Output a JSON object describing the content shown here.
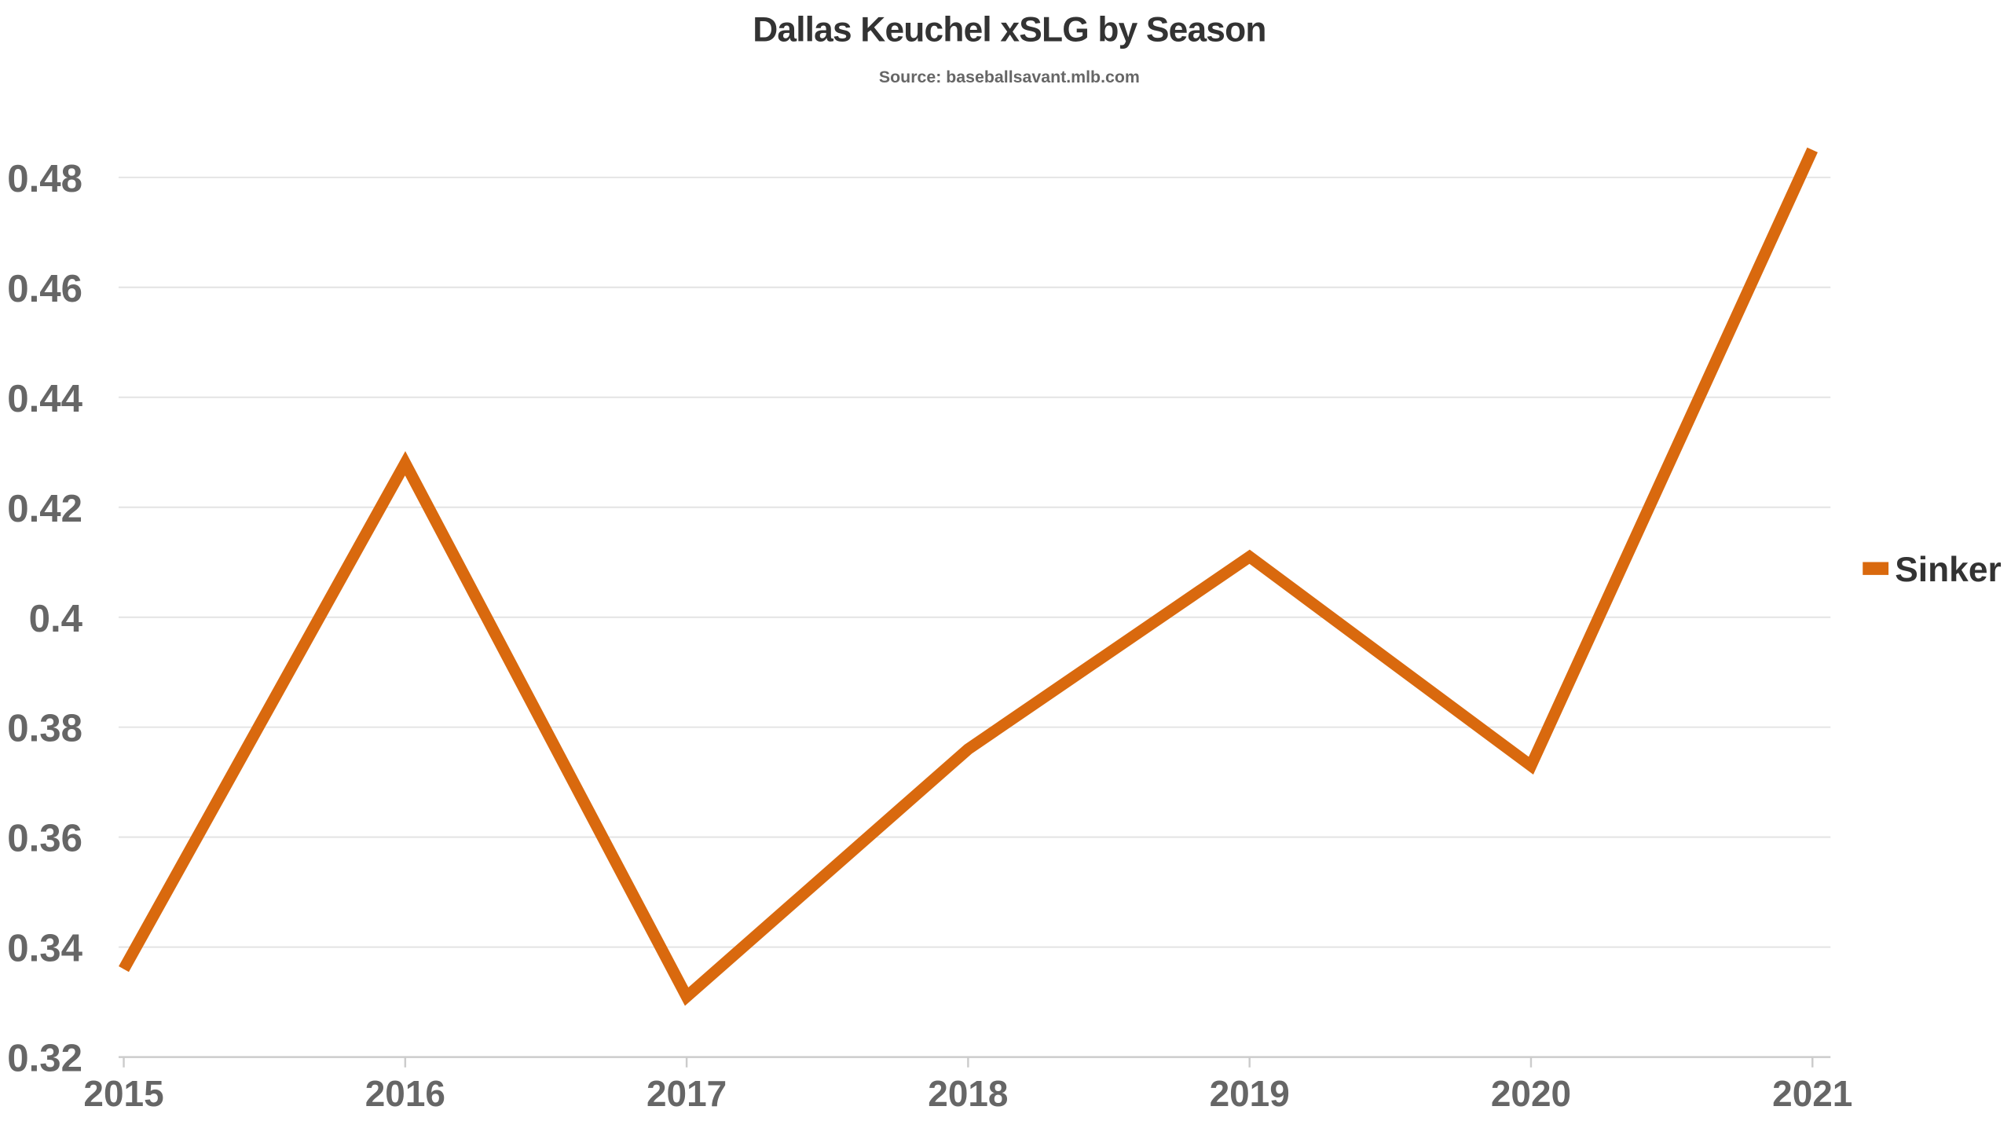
{
  "chart_data": {
    "type": "line",
    "title": "Dallas Keuchel xSLG by Season",
    "subtitle": "Source: baseballsavant.mlb.com",
    "x": [
      "2015",
      "2016",
      "2017",
      "2018",
      "2019",
      "2020",
      "2021"
    ],
    "series": [
      {
        "name": "Sinker",
        "color": "#D9690E",
        "values": [
          0.336,
          0.428,
          0.331,
          0.376,
          0.411,
          0.373,
          0.485
        ]
      }
    ],
    "ylim": [
      0.32,
      0.49
    ],
    "y_ticks": [
      "0.32",
      "0.34",
      "0.36",
      "0.38",
      "0.4",
      "0.42",
      "0.44",
      "0.46",
      "0.48"
    ],
    "xlabel": "",
    "ylabel": "",
    "grid": true,
    "legend_position": "right"
  }
}
